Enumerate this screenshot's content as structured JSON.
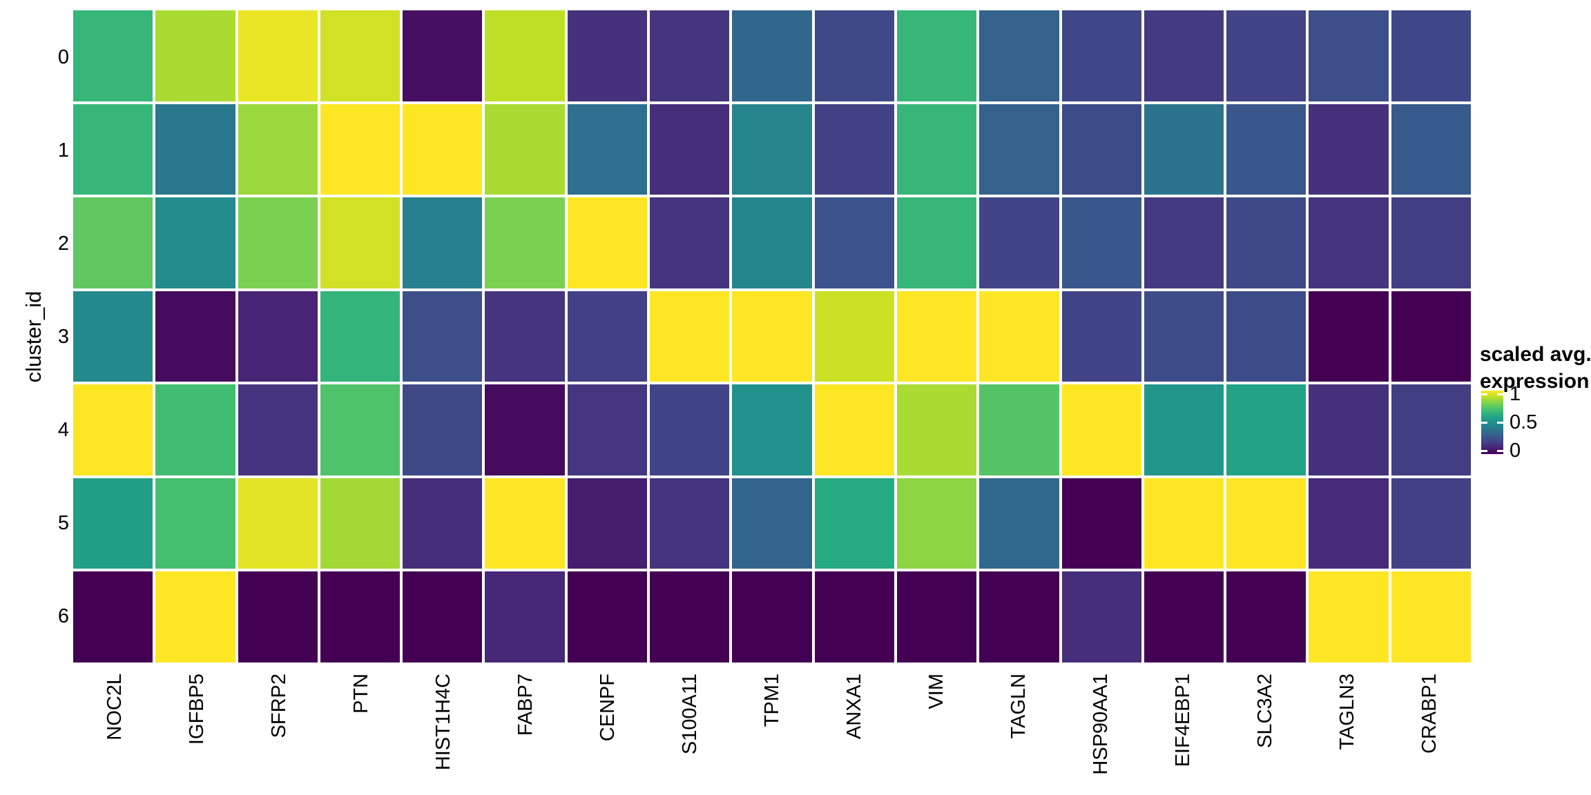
{
  "chart_data": {
    "type": "heatmap",
    "title": "",
    "xlabel": "",
    "ylabel": "cluster_id",
    "x_categories": [
      "NOC2L",
      "IGFBP5",
      "SFRP2",
      "PTN",
      "HIST1H4C",
      "FABP7",
      "CENPF",
      "S100A11",
      "TPM1",
      "ANXA1",
      "VIM",
      "TAGLN",
      "HSP90AA1",
      "EIF4EBP1",
      "SLC3A2",
      "TAGLN3",
      "CRABP1"
    ],
    "y_categories": [
      "0",
      "1",
      "2",
      "3",
      "4",
      "5",
      "6"
    ],
    "value_range": [
      0,
      1
    ],
    "values": [
      [
        0.66,
        0.87,
        0.97,
        0.93,
        0.04,
        0.9,
        0.14,
        0.15,
        0.33,
        0.22,
        0.66,
        0.31,
        0.21,
        0.17,
        0.2,
        0.24,
        0.21
      ],
      [
        0.66,
        0.4,
        0.85,
        1.0,
        1.0,
        0.87,
        0.36,
        0.13,
        0.45,
        0.19,
        0.66,
        0.31,
        0.23,
        0.38,
        0.27,
        0.14,
        0.28
      ],
      [
        0.75,
        0.48,
        0.8,
        0.93,
        0.43,
        0.8,
        1.0,
        0.15,
        0.46,
        0.25,
        0.66,
        0.2,
        0.27,
        0.17,
        0.22,
        0.15,
        0.18
      ],
      [
        0.47,
        0.03,
        0.1,
        0.65,
        0.24,
        0.15,
        0.19,
        1.0,
        1.0,
        0.92,
        1.0,
        1.0,
        0.2,
        0.23,
        0.23,
        0.0,
        0.0
      ],
      [
        1.0,
        0.69,
        0.15,
        0.72,
        0.22,
        0.03,
        0.16,
        0.2,
        0.5,
        1.0,
        0.87,
        0.73,
        1.0,
        0.52,
        0.58,
        0.14,
        0.18
      ],
      [
        0.56,
        0.7,
        0.96,
        0.86,
        0.13,
        1.0,
        0.08,
        0.15,
        0.32,
        0.61,
        0.83,
        0.34,
        0.0,
        1.0,
        1.0,
        0.12,
        0.19
      ],
      [
        0.0,
        1.0,
        0.0,
        0.0,
        0.0,
        0.11,
        0.0,
        0.0,
        0.0,
        0.0,
        0.0,
        0.0,
        0.13,
        0.0,
        0.0,
        1.0,
        1.0
      ]
    ],
    "colormap": {
      "name": "viridis",
      "t": [
        0,
        0.1,
        0.2,
        0.3,
        0.4,
        0.5,
        0.6,
        0.7,
        0.8,
        0.9,
        1.0
      ],
      "colors": [
        "#440154",
        "#482475",
        "#414487",
        "#355f8d",
        "#2a788e",
        "#21918c",
        "#22a884",
        "#44bf70",
        "#7ad151",
        "#bddf26",
        "#fde725"
      ]
    },
    "cell_border_color": "#ffffff",
    "grid": false,
    "legend": {
      "position": "right",
      "title_lines": [
        "scaled avg.",
        "expression"
      ],
      "ticks": [
        {
          "label": "1",
          "value": 1.0
        },
        {
          "label": "0.5",
          "value": 0.5
        },
        {
          "label": "0",
          "value": 0.0
        }
      ]
    }
  }
}
